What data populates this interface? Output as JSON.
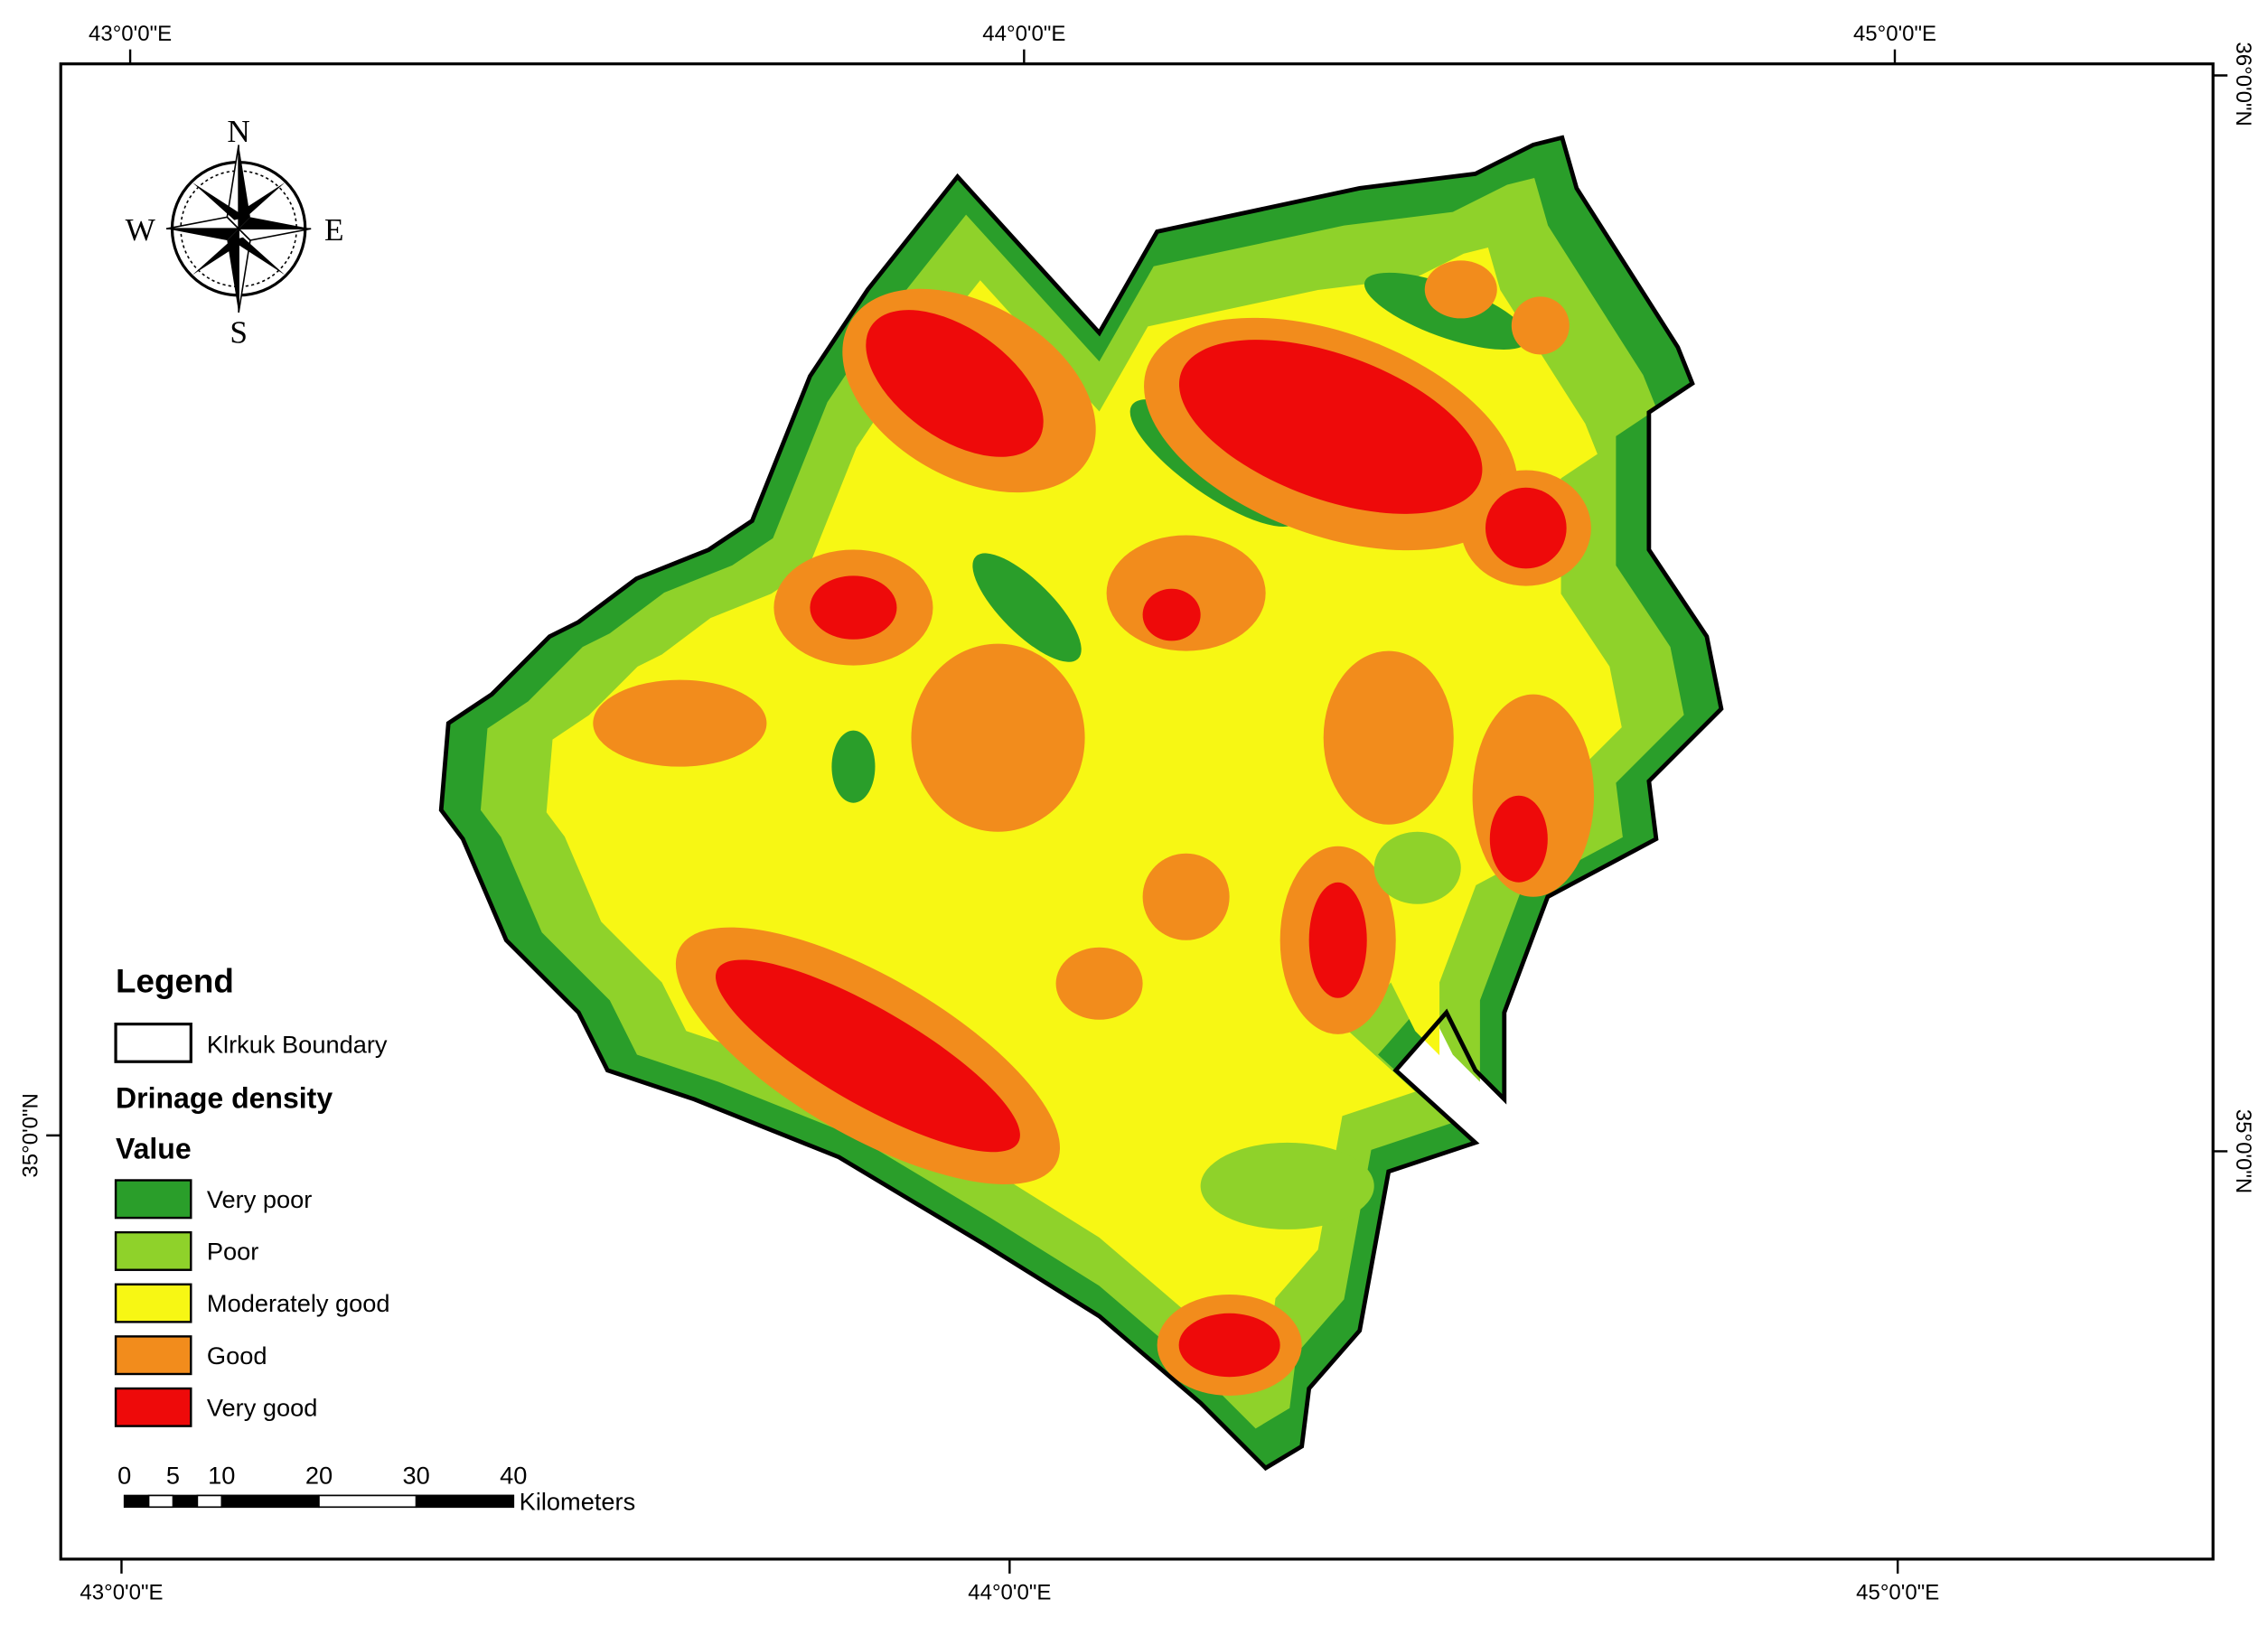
{
  "graticule": {
    "top": [
      "43°0'0\"E",
      "44°0'0\"E",
      "45°0'0\"E"
    ],
    "bottom": [
      "43°0'0\"E",
      "44°0'0\"E",
      "45°0'0\"E"
    ],
    "left": [
      "35°0'0\"N"
    ],
    "right": [
      "36°0'0\"N",
      "35°0'0\"N"
    ]
  },
  "compass": {
    "n": "N",
    "s": "S",
    "e": "E",
    "w": "W"
  },
  "legend": {
    "title": "Legend",
    "boundary": "Klrkuk Boundary",
    "layer": "Drinage density",
    "field": "Value",
    "classes": [
      {
        "label": "Very poor",
        "color": "#2a9e2a"
      },
      {
        "label": "Poor",
        "color": "#8fd22a"
      },
      {
        "label": "Moderately good",
        "color": "#f7f714"
      },
      {
        "label": "Good",
        "color": "#f28c1c"
      },
      {
        "label": "Very good",
        "color": "#ee0a0a"
      }
    ]
  },
  "scale_bar": {
    "ticks": [
      0,
      5,
      10,
      20,
      30,
      40
    ],
    "unit": "Kilometers"
  }
}
